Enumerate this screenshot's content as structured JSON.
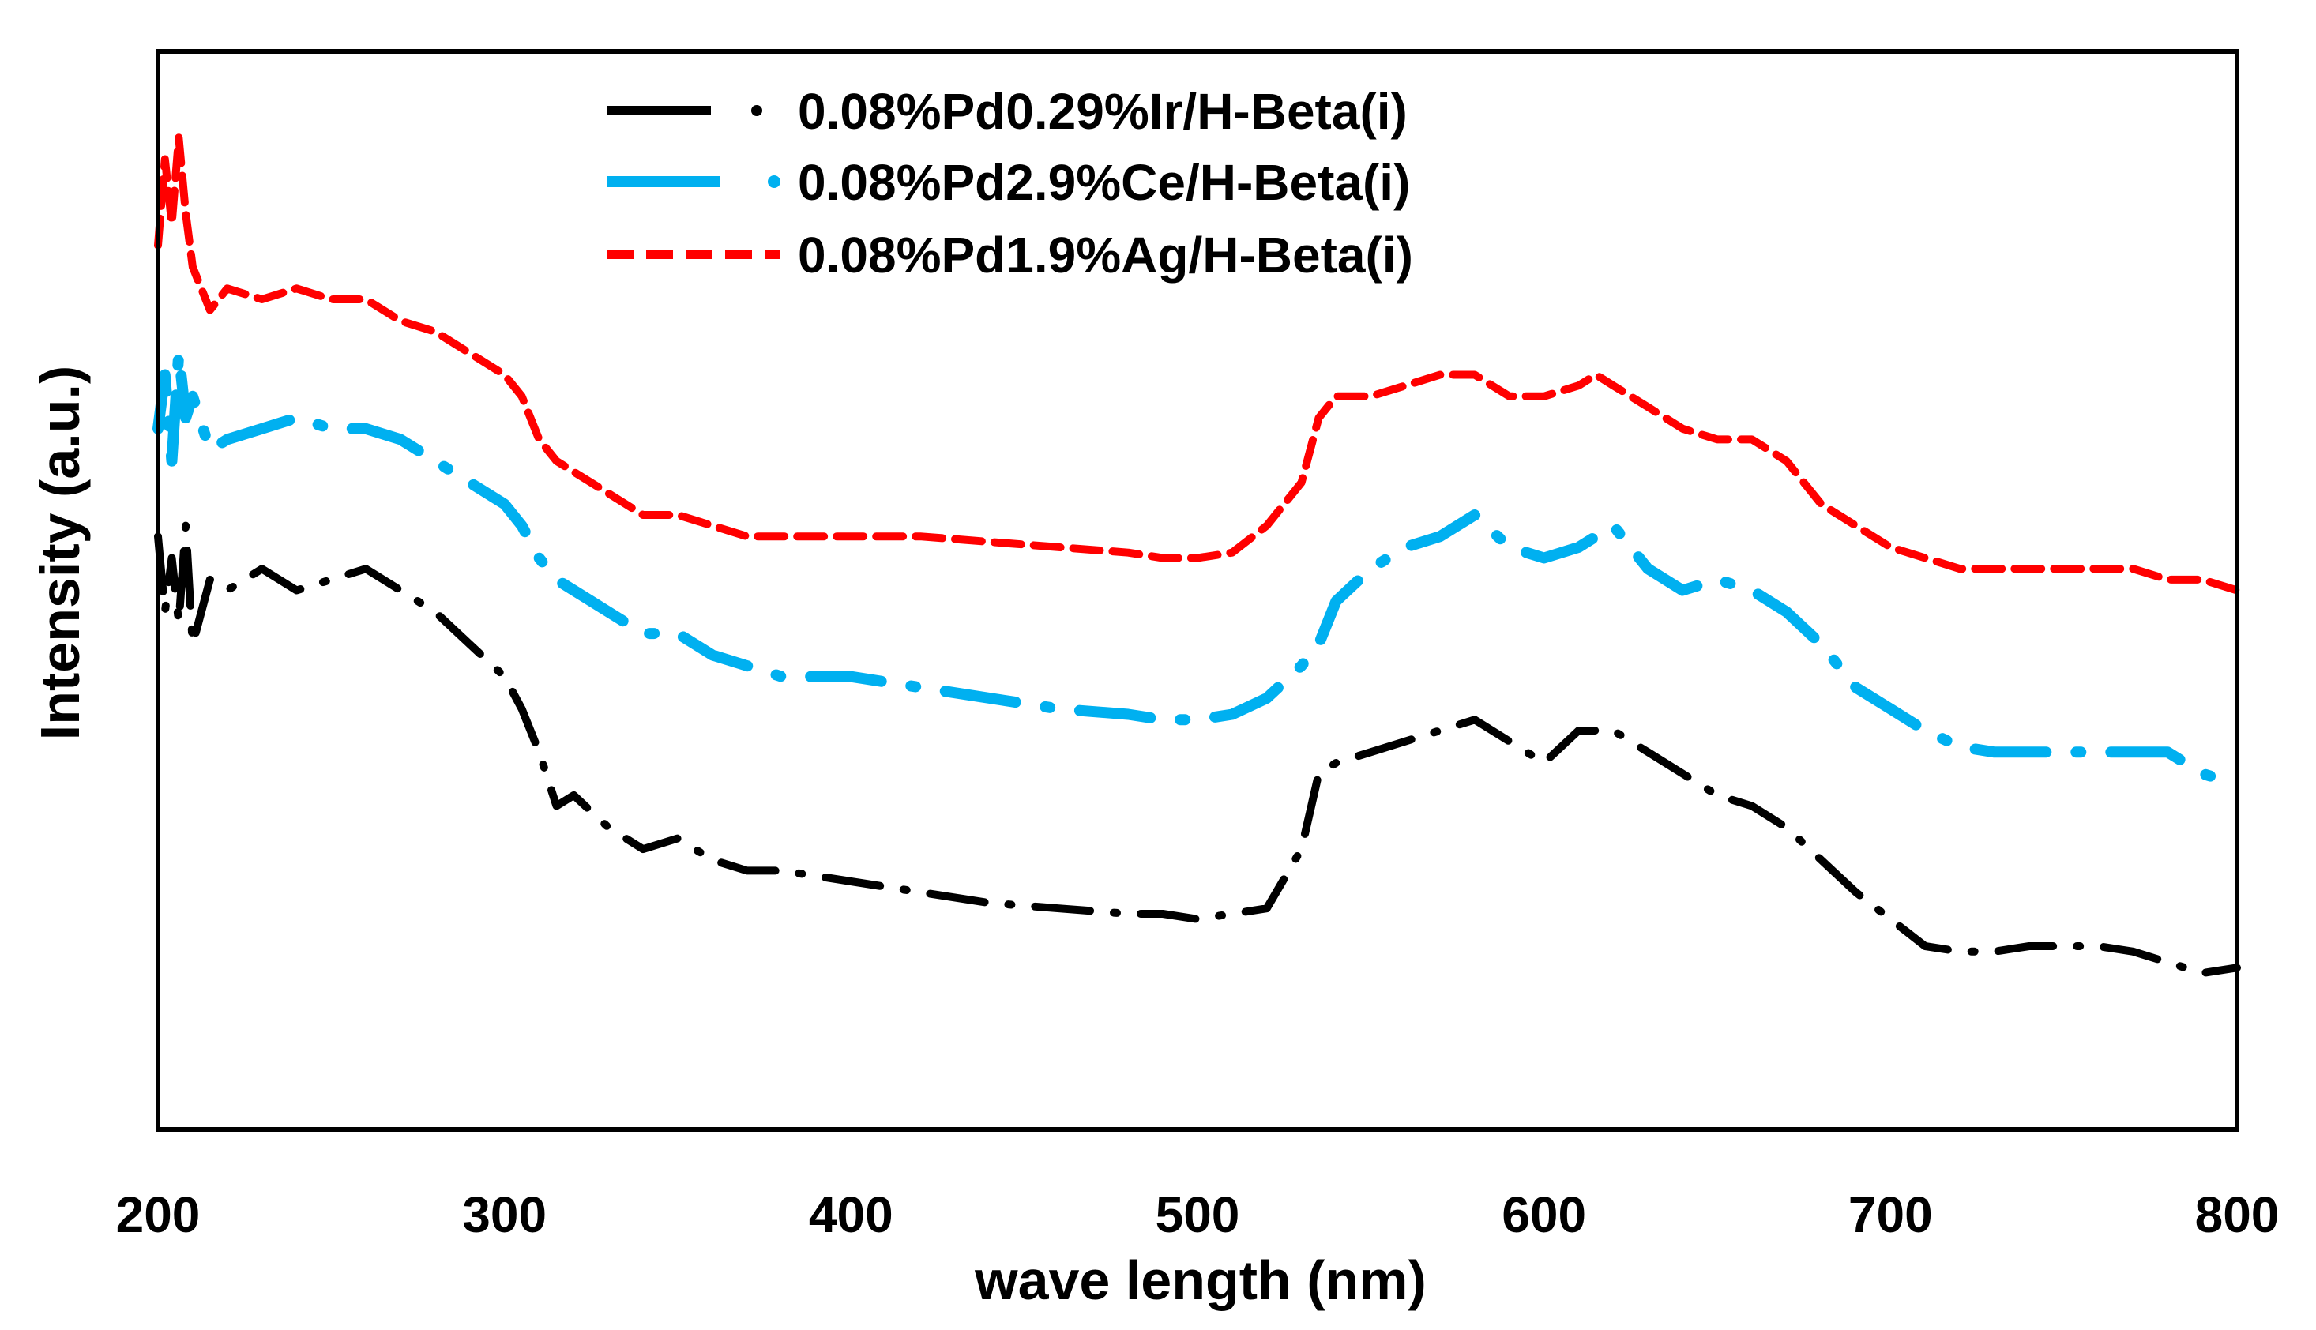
{
  "chart_data": {
    "type": "line",
    "title": "",
    "xlabel": "wave length (nm)",
    "ylabel": "Intensity (a.u.)",
    "xlim": [
      200,
      800
    ],
    "ylim": [
      0,
      100
    ],
    "x_ticks": [
      "200",
      "300",
      "400",
      "500",
      "600",
      "700",
      "800"
    ],
    "y_ticks": [],
    "grid": false,
    "legend_position": "top-center",
    "series": [
      {
        "name": "0.08%Pd0.29%Ir/H-Beta(i)",
        "color": "#000000",
        "style": "dash-dot",
        "x": [
          200,
          202,
          204,
          206,
          208,
          210,
          215,
          220,
          230,
          240,
          250,
          260,
          270,
          280,
          290,
          300,
          305,
          310,
          315,
          320,
          330,
          340,
          350,
          360,
          370,
          380,
          400,
          420,
          440,
          460,
          480,
          490,
          500,
          510,
          520,
          530,
          535,
          540,
          550,
          560,
          570,
          580,
          590,
          600,
          610,
          615,
          620,
          630,
          640,
          650,
          660,
          670,
          680,
          690,
          700,
          710,
          720,
          730,
          740,
          750,
          760,
          770,
          780,
          790,
          800
        ],
        "values": [
          55,
          48,
          53,
          47,
          56,
          45,
          51,
          50,
          52,
          50,
          51,
          52,
          50,
          48,
          45,
          42,
          39,
          35,
          30,
          31,
          28,
          26,
          27,
          25,
          24,
          24,
          23,
          22,
          21,
          20.5,
          20,
          20,
          19.5,
          20,
          20.5,
          26,
          33,
          34,
          35,
          36,
          37,
          38,
          36,
          34,
          37,
          37,
          37,
          35,
          33,
          31,
          30,
          28,
          25,
          22,
          19.5,
          17,
          16.5,
          16.5,
          17,
          17,
          17,
          16.5,
          15.5,
          14.5,
          15
        ]
      },
      {
        "name": "0.08%Pd2.9%Ce/H-Beta(i)",
        "color": "#00b0f0",
        "style": "long-dash-dot",
        "x": [
          200,
          202,
          204,
          206,
          208,
          210,
          215,
          220,
          230,
          240,
          250,
          260,
          270,
          280,
          290,
          300,
          305,
          310,
          315,
          320,
          330,
          340,
          350,
          360,
          370,
          380,
          400,
          420,
          440,
          460,
          480,
          490,
          500,
          510,
          520,
          530,
          535,
          540,
          550,
          560,
          570,
          580,
          590,
          600,
          610,
          615,
          620,
          630,
          640,
          650,
          660,
          670,
          680,
          690,
          700,
          710,
          720,
          730,
          740,
          750,
          760,
          770,
          780,
          790,
          800
        ],
        "values": [
          65,
          70,
          62,
          72,
          66,
          68,
          63,
          64,
          65,
          66,
          65,
          65,
          64,
          62,
          60,
          58,
          56,
          53,
          51,
          50,
          48,
          46,
          46,
          44,
          43,
          42,
          42,
          41,
          40,
          39,
          38.5,
          38,
          38,
          38.5,
          40,
          43,
          45,
          49,
          52,
          54,
          55,
          57,
          54,
          53,
          54,
          55,
          56,
          52,
          50,
          51,
          50,
          48,
          45,
          41,
          39,
          37,
          35.5,
          35,
          35,
          35,
          35,
          35,
          35,
          33,
          32
        ]
      },
      {
        "name": "0.08%Pd1.9%Ag/H-Beta(i)",
        "color": "#ff0000",
        "style": "dash",
        "x": [
          200,
          202,
          204,
          206,
          208,
          210,
          215,
          220,
          230,
          240,
          250,
          260,
          270,
          280,
          290,
          300,
          305,
          310,
          315,
          320,
          330,
          340,
          350,
          360,
          370,
          380,
          400,
          420,
          440,
          460,
          480,
          490,
          500,
          510,
          520,
          530,
          535,
          540,
          550,
          560,
          570,
          580,
          590,
          600,
          610,
          615,
          620,
          630,
          640,
          650,
          660,
          670,
          680,
          690,
          700,
          710,
          720,
          730,
          740,
          750,
          760,
          770,
          780,
          790,
          800
        ],
        "values": [
          82,
          90,
          84,
          92,
          85,
          80,
          76,
          78,
          77,
          78,
          77,
          77,
          75,
          74,
          72,
          70,
          68,
          64,
          62,
          61,
          59,
          57,
          57,
          56,
          55,
          55,
          55,
          55,
          54.5,
          54,
          53.5,
          53,
          53,
          53.5,
          56,
          60,
          66,
          68,
          68,
          69,
          70,
          70,
          68,
          68,
          69,
          70,
          69,
          67,
          65,
          64,
          64,
          62,
          58,
          56,
          54,
          53,
          52,
          52,
          52,
          52,
          52,
          52,
          51,
          51,
          50
        ]
      }
    ]
  }
}
